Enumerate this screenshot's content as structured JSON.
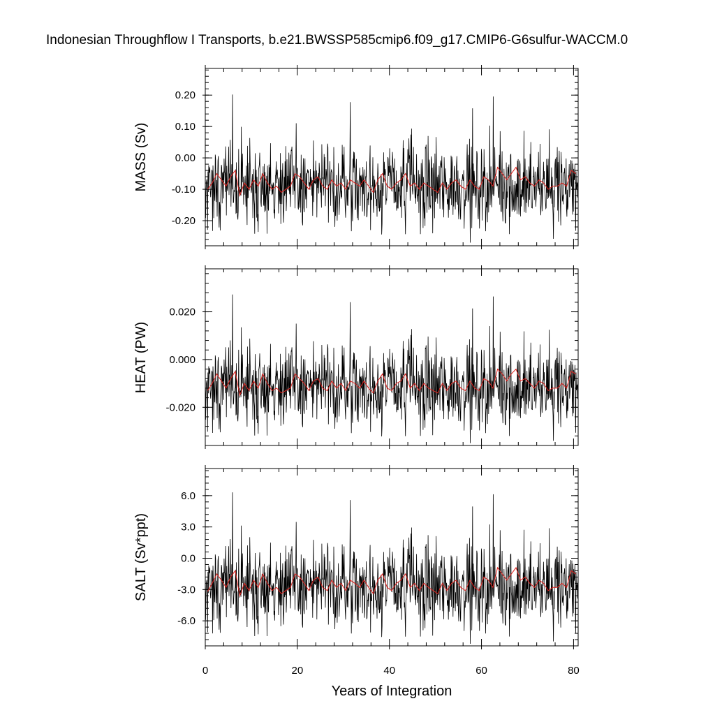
{
  "title": "Indonesian Throughflow I Transports, b.e21.BWSSP585cmip6.f09_g17.CMIP6-G6sulfur-WACCM.0",
  "xlabel": "Years of Integration",
  "x_ticks": [
    "0",
    "20",
    "40",
    "60",
    "80"
  ],
  "colors": {
    "monthly": "#000000",
    "annual": "#e0201c"
  },
  "chart_data": [
    {
      "type": "line",
      "ylabel": "MASS (Sv)",
      "xlim": [
        0,
        81
      ],
      "ylim": [
        -0.28,
        0.285
      ],
      "y_ticks": [
        0.2,
        0.1,
        0.0,
        -0.1,
        -0.2
      ],
      "y_tick_labels": [
        "0.20",
        "0.10",
        "0.00",
        "-0.10",
        "-0.20"
      ],
      "series": [
        {
          "kind": "monthly",
          "step": 0.0833,
          "mean": -0.085,
          "amp": 0.09,
          "min": -0.27,
          "max": 0.27
        },
        {
          "kind": "annual",
          "step": 1,
          "values": [
            -0.1,
            -0.08,
            -0.05,
            -0.07,
            -0.09,
            -0.06,
            -0.04,
            -0.12,
            -0.08,
            -0.1,
            -0.07,
            -0.09,
            -0.05,
            -0.08,
            -0.1,
            -0.09,
            -0.11,
            -0.1,
            -0.09,
            -0.05,
            -0.06,
            -0.08,
            -0.1,
            -0.07,
            -0.06,
            -0.09,
            -0.1,
            -0.07,
            -0.09,
            -0.08,
            -0.1,
            -0.07,
            -0.08,
            -0.09,
            -0.07,
            -0.09,
            -0.11,
            -0.07,
            -0.05,
            -0.09,
            -0.1,
            -0.08,
            -0.07,
            -0.05,
            -0.09,
            -0.08,
            -0.1,
            -0.08,
            -0.09,
            -0.1,
            -0.11,
            -0.08,
            -0.1,
            -0.08,
            -0.07,
            -0.09,
            -0.1,
            -0.07,
            -0.09,
            -0.1,
            -0.06,
            -0.07,
            -0.09,
            -0.03,
            -0.05,
            -0.07,
            -0.05,
            -0.03,
            -0.07,
            -0.06,
            -0.08,
            -0.09,
            -0.07,
            -0.08,
            -0.1,
            -0.09,
            -0.09,
            -0.08,
            -0.09,
            -0.04,
            -0.05
          ]
        }
      ]
    },
    {
      "type": "line",
      "ylabel": "HEAT (PW)",
      "xlim": [
        0,
        81
      ],
      "ylim": [
        -0.036,
        0.038
      ],
      "y_ticks": [
        0.02,
        0.0,
        -0.02
      ],
      "y_tick_labels": [
        "0.020",
        "0.000",
        "-0.020"
      ],
      "series": [
        {
          "kind": "monthly",
          "step": 0.0833,
          "mean": -0.011,
          "amp": 0.012,
          "min": -0.035,
          "max": 0.037
        },
        {
          "kind": "annual",
          "step": 1,
          "values": [
            -0.013,
            -0.01,
            -0.006,
            -0.009,
            -0.012,
            -0.008,
            -0.005,
            -0.015,
            -0.01,
            -0.013,
            -0.009,
            -0.012,
            -0.006,
            -0.01,
            -0.013,
            -0.012,
            -0.014,
            -0.013,
            -0.012,
            -0.006,
            -0.008,
            -0.01,
            -0.013,
            -0.009,
            -0.008,
            -0.012,
            -0.013,
            -0.009,
            -0.012,
            -0.01,
            -0.013,
            -0.009,
            -0.01,
            -0.012,
            -0.009,
            -0.012,
            -0.014,
            -0.009,
            -0.006,
            -0.012,
            -0.013,
            -0.01,
            -0.009,
            -0.006,
            -0.012,
            -0.01,
            -0.013,
            -0.01,
            -0.012,
            -0.013,
            -0.014,
            -0.01,
            -0.013,
            -0.01,
            -0.009,
            -0.012,
            -0.013,
            -0.009,
            -0.012,
            -0.013,
            -0.008,
            -0.009,
            -0.012,
            -0.004,
            -0.006,
            -0.009,
            -0.006,
            -0.004,
            -0.009,
            -0.008,
            -0.01,
            -0.012,
            -0.009,
            -0.01,
            -0.013,
            -0.012,
            -0.012,
            -0.01,
            -0.012,
            -0.005,
            -0.006
          ]
        }
      ]
    },
    {
      "type": "line",
      "ylabel": "SALT (Sv*ppt)",
      "xlim": [
        0,
        81
      ],
      "ylim": [
        -8.4,
        8.6
      ],
      "y_ticks": [
        6.0,
        3.0,
        0.0,
        -3.0,
        -6.0
      ],
      "y_tick_labels": [
        "6.0",
        "3.0",
        "0.0",
        "-3.0",
        "-6.0"
      ],
      "series": [
        {
          "kind": "monthly",
          "step": 0.0833,
          "mean": -2.6,
          "amp": 2.8,
          "min": -8.2,
          "max": 8.2
        },
        {
          "kind": "annual",
          "step": 1,
          "values": [
            -3.2,
            -2.4,
            -1.5,
            -2.1,
            -2.8,
            -1.8,
            -1.2,
            -3.6,
            -2.4,
            -3.1,
            -2.1,
            -2.8,
            -1.5,
            -2.4,
            -3.1,
            -2.8,
            -3.4,
            -3.1,
            -2.8,
            -1.5,
            -1.8,
            -2.4,
            -3.1,
            -2.1,
            -1.8,
            -2.8,
            -3.1,
            -2.1,
            -2.8,
            -2.4,
            -3.1,
            -2.1,
            -2.4,
            -2.8,
            -2.1,
            -2.8,
            -3.4,
            -2.1,
            -1.5,
            -2.8,
            -3.1,
            -2.4,
            -2.1,
            -1.5,
            -2.8,
            -2.4,
            -3.1,
            -2.4,
            -2.8,
            -3.1,
            -3.4,
            -2.4,
            -3.1,
            -2.4,
            -2.1,
            -2.8,
            -3.1,
            -2.1,
            -2.8,
            -3.1,
            -1.8,
            -2.1,
            -2.8,
            -0.9,
            -1.5,
            -2.1,
            -1.5,
            -0.9,
            -2.1,
            -1.8,
            -2.4,
            -2.8,
            -2.1,
            -2.4,
            -3.1,
            -2.8,
            -2.8,
            -2.4,
            -2.8,
            -1.2,
            -1.5
          ]
        }
      ]
    }
  ]
}
